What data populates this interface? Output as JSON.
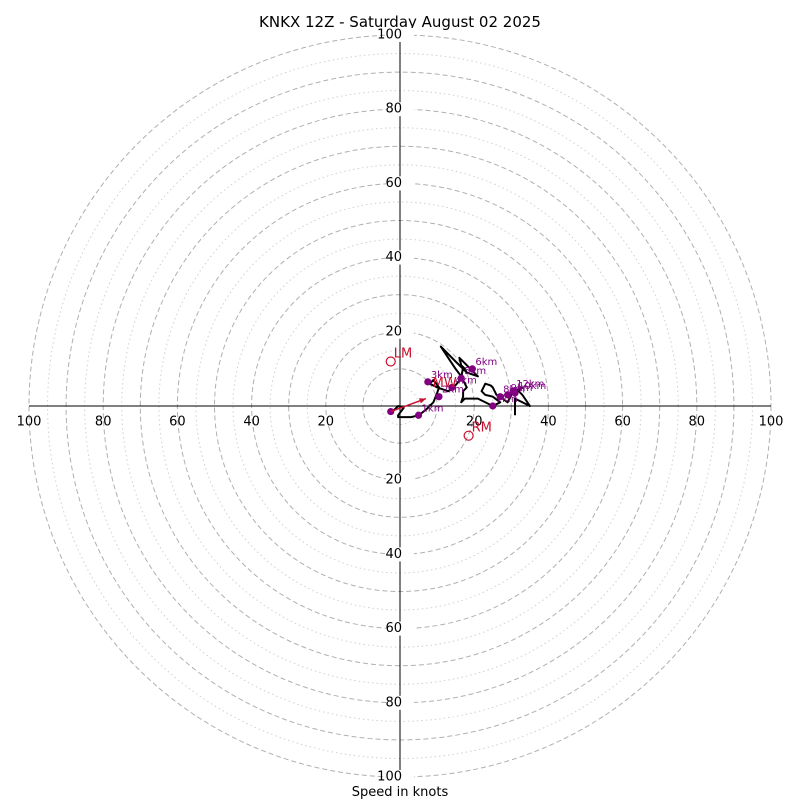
{
  "chart_data": {
    "type": "hodograph",
    "title": "KNKX 12Z - Saturday August 02 2025",
    "xlabel": "Speed in knots",
    "ylabel": "",
    "xlim": [
      -100,
      100
    ],
    "ylim": [
      -100,
      100
    ],
    "rings_major": [
      10,
      20,
      30,
      40,
      50,
      60,
      70,
      80,
      90,
      100
    ],
    "rings_minor": [
      5,
      15,
      25,
      35,
      45,
      55,
      65,
      75,
      85,
      95
    ],
    "tick_labels_right": [
      "20",
      "40",
      "60",
      "80",
      "100"
    ],
    "tick_labels_left": [
      "100",
      "80",
      "60",
      "40",
      "20"
    ],
    "tick_labels_up": [
      "20",
      "40",
      "60",
      "80",
      "100"
    ],
    "tick_labels_down": [
      "20",
      "40",
      "60",
      "80",
      "100"
    ],
    "hodograph_trace": [
      [
        -2.5,
        -2
      ],
      [
        -0.5,
        0
      ],
      [
        1,
        -0.5
      ],
      [
        -0.5,
        -2.5
      ],
      [
        -0.5,
        -3
      ],
      [
        1,
        -3
      ],
      [
        3,
        -3
      ],
      [
        5,
        -2.5
      ],
      [
        7,
        -1
      ],
      [
        9,
        1
      ],
      [
        10,
        3.5
      ],
      [
        10.5,
        5
      ],
      [
        9,
        7
      ],
      [
        8,
        6
      ],
      [
        10,
        5
      ],
      [
        13,
        4
      ],
      [
        14.5,
        5
      ],
      [
        16.5,
        7.5
      ],
      [
        17,
        10.5
      ],
      [
        18,
        9
      ],
      [
        17.5,
        10
      ],
      [
        16.5,
        11
      ],
      [
        16,
        13
      ],
      [
        17.5,
        11.5
      ],
      [
        19,
        10
      ],
      [
        21,
        8
      ],
      [
        18,
        9
      ],
      [
        15,
        12
      ],
      [
        11,
        16
      ],
      [
        13,
        13
      ],
      [
        15,
        10
      ],
      [
        16.5,
        8
      ],
      [
        17.5,
        6
      ],
      [
        18,
        5
      ],
      [
        17,
        4
      ],
      [
        17,
        2.5
      ],
      [
        16.5,
        1
      ],
      [
        17.5,
        2
      ],
      [
        21,
        2
      ],
      [
        25,
        0
      ],
      [
        27,
        1
      ],
      [
        25,
        2.5
      ],
      [
        23,
        3
      ],
      [
        22,
        4
      ],
      [
        23,
        6
      ],
      [
        24.5,
        5.5
      ],
      [
        25,
        5
      ],
      [
        26,
        3
      ],
      [
        27,
        2.5
      ],
      [
        29,
        1
      ],
      [
        30,
        3
      ],
      [
        31,
        4
      ],
      [
        33,
        5
      ],
      [
        32,
        4
      ],
      [
        33,
        3
      ],
      [
        35,
        0
      ],
      [
        31,
        2
      ],
      [
        31,
        -1
      ],
      [
        31,
        -2.5
      ]
    ],
    "height_markers": [
      {
        "label": "1km",
        "u": 5,
        "v": -2.5
      },
      {
        "label": "2km",
        "u": 10.5,
        "v": 2.5
      },
      {
        "label": "3km",
        "u": 7.5,
        "v": 6.5
      },
      {
        "label": "4km",
        "u": 14,
        "v": 5
      },
      {
        "label": "5km",
        "u": 16.5,
        "v": 7.5
      },
      {
        "label": "6km",
        "u": 19.5,
        "v": 10
      },
      {
        "label": "7km",
        "u": 25,
        "v": 0
      },
      {
        "label": "8km",
        "u": 27,
        "v": 2.5
      },
      {
        "label": "9km",
        "u": 29,
        "v": 3
      },
      {
        "label": "10km",
        "u": 31,
        "v": 3.5
      },
      {
        "label": "12km",
        "u": 30.5,
        "v": 4
      }
    ],
    "surface_point": {
      "u": -2.5,
      "v": -1.5
    },
    "storm_motion_labels": [
      {
        "label": "LM",
        "u": -2.5,
        "v": 12
      },
      {
        "label": "RM",
        "u": 18.5,
        "v": -8
      },
      {
        "label": "MW",
        "u": 8,
        "v": 4
      }
    ],
    "storm_motion_vector": {
      "from": [
        -2.5,
        -1.5
      ],
      "to": [
        7,
        2
      ]
    },
    "colors": {
      "trace": "#000000",
      "markers": "#800080",
      "storm_motion": "#c8102e",
      "rings": "#b0b0b0",
      "axis": "#000000"
    }
  }
}
